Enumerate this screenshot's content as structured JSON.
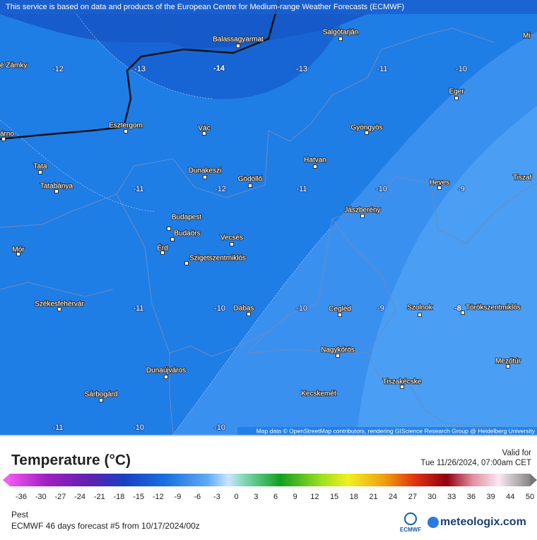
{
  "header": {
    "notice": "This service is based on data and products of the European Centre for Medium-range Weather Forecasts (ECMWF)"
  },
  "map": {
    "cities": [
      "Balassagyarmat",
      "Salgótarján",
      "Mi",
      "é Zámky",
      "Eger",
      "árno",
      "Esztergom",
      "Vác",
      "Gyöngyös",
      "Tata",
      "Dunakeszi",
      "Gödöllő",
      "Hatvan",
      "Tatabánya",
      "Heves",
      "Tiszaf",
      "Budapest",
      "Jászberény",
      "Budaörs",
      "Mór",
      "Érd",
      "Vecsés",
      "Szigetszentmiklós",
      "Székesfehérvár",
      "Dabas",
      "Cegléd",
      "Szolnok",
      "Törökszentmiklós",
      "Nagykőrös",
      "Mezőtúr",
      "Dunaújváros",
      "Tiszakécske",
      "Sárbogárd",
      "Kecskemét"
    ],
    "temperatures": [
      "-12",
      "-13",
      "-14",
      "-13",
      "-11",
      "-10",
      "-11",
      "-12",
      "-11",
      "-10",
      "-9",
      "-11",
      "-10",
      "-10",
      "-9",
      "-8",
      "-11",
      "-10",
      "-10"
    ],
    "attribution": "Map data © OpenStreetMap contributors, rendering GIScience Research Group @ Heidelberg University"
  },
  "legend": {
    "title": "Temperature (°C)",
    "valid_label": "Valid for",
    "valid_time": "Tue 11/26/2024, 07:00am CET",
    "ticks": [
      "-36",
      "-30",
      "-27",
      "-24",
      "-21",
      "-18",
      "-15",
      "-12",
      "-9",
      "-6",
      "-3",
      "0",
      "3",
      "6",
      "9",
      "12",
      "15",
      "18",
      "21",
      "24",
      "27",
      "30",
      "33",
      "36",
      "39",
      "44",
      "50"
    ]
  },
  "footer": {
    "region": "Pest",
    "model": "ECMWF 46 days forecast #5 from  10/17/2024/00z",
    "ecmwf_logo": "ECMWF",
    "brand": "meteologix.com"
  }
}
